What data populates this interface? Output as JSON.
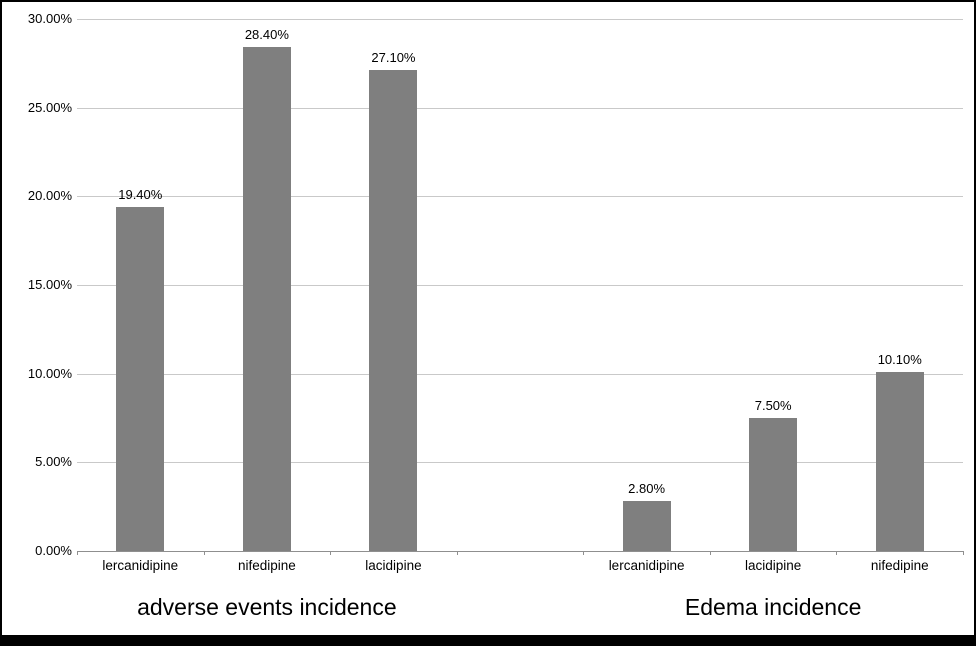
{
  "chart_data": {
    "type": "bar",
    "title": "",
    "xlabel": "",
    "ylabel": "",
    "ylim": [
      0,
      30
    ],
    "grid": true,
    "legend": "none",
    "bar_color": "#7f7f7f",
    "gridline_color": "#c9c9c9",
    "axis_color": "#8f8f8f",
    "background_color": "#ffffff",
    "border_color": "#000000",
    "y_tick_labels": [
      "30.00%",
      "25.00%",
      "20.00%",
      "15.00%",
      "10.00%",
      "5.00%",
      "0.00%"
    ],
    "groups": [
      {
        "title": "adverse events incidence",
        "categories": [
          "lercanidipine",
          "nifedipine",
          "lacidipine"
        ],
        "values": [
          19.4,
          28.4,
          27.1
        ],
        "value_labels": [
          "19.40%",
          "28.40%",
          "27.10%"
        ]
      },
      {
        "title": "Edema incidence",
        "categories": [
          "lercanidipine",
          "lacidipine",
          "nifedipine"
        ],
        "values": [
          2.8,
          7.5,
          10.1
        ],
        "value_labels": [
          "2.80%",
          "7.50%",
          "10.10%"
        ]
      }
    ]
  }
}
